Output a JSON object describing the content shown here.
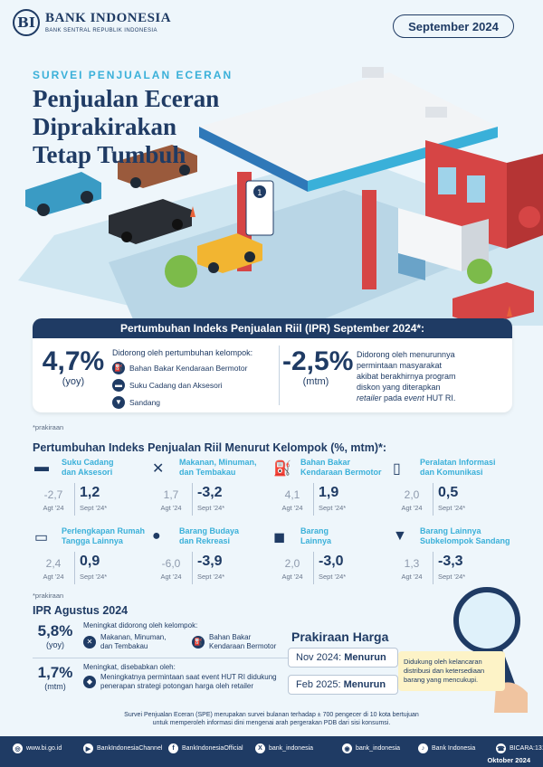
{
  "header": {
    "brand_name": "BANK INDONESIA",
    "brand_sub": "BANK SENTRAL REPUBLIK INDONESIA",
    "logo_letter": "BI",
    "period": "September 2024"
  },
  "intro": {
    "eyebrow": "SURVEI PENJUALAN ECERAN",
    "headline_line1": "Penjualan Eceran Diprakirakan",
    "headline_line2": "Tetap Tumbuh"
  },
  "ipr": {
    "title": "Pertumbuhan Indeks Penjualan Riil (IPR) September 2024*:",
    "yoy_value": "4,7%",
    "yoy_label": "(yoy)",
    "yoy_driver": "Didorong oleh pertumbuhan kelompok:",
    "yoy_items": [
      {
        "label": "Bahan Bakar Kendaraan Bermotor",
        "icon": "fuel-hose-icon"
      },
      {
        "label": "Suku Cadang dan Aksesori",
        "icon": "car-icon"
      },
      {
        "label": "Sandang",
        "icon": "shirt-icon"
      }
    ],
    "mtm_value": "-2,5%",
    "mtm_label": "(mtm)",
    "mtm_text_1": "Didorong oleh menurunnya",
    "mtm_text_2": "permintaan masyarakat",
    "mtm_text_3": "akibat berakhirnya program",
    "mtm_text_4": "diskon yang diterapkan",
    "mtm_text_5a": "retailer",
    "mtm_text_5b": " pada ",
    "mtm_text_5c": "event",
    "mtm_text_5d": " HUT RI.",
    "note": "*prakiraan"
  },
  "groups": {
    "title": "Pertumbuhan Indeks Penjualan Riil Menurut Kelompok (%, mtm)*:",
    "prev_label": "Agt '24",
    "cur_label": "Sept '24*",
    "items": [
      {
        "name1": "Suku Cadang",
        "name2": "dan Aksesori",
        "prev": "-2,7",
        "cur": "1,2",
        "icon": "car-icon"
      },
      {
        "name1": "Makanan, Minuman,",
        "name2": "dan Tembakau",
        "prev": "1,7",
        "cur": "-3,2",
        "icon": "utensils-icon"
      },
      {
        "name1": "Bahan Bakar",
        "name2": "Kendaraan Bermotor",
        "prev": "4,1",
        "cur": "1,9",
        "icon": "fuel-hose-icon"
      },
      {
        "name1": "Peralatan Informasi",
        "name2": "dan Komunikasi",
        "prev": "2,0",
        "cur": "0,5",
        "icon": "phone-icon"
      },
      {
        "name1": "Perlengkapan Rumah",
        "name2": "Tangga Lainnya",
        "prev": "2,4",
        "cur": "0,9",
        "icon": "sofa-icon"
      },
      {
        "name1": "Barang Budaya",
        "name2": "dan Rekreasi",
        "prev": "-6,0",
        "cur": "-3,9",
        "icon": "drop-icon"
      },
      {
        "name1": "Barang",
        "name2": "Lainnya",
        "prev": "2,0",
        "cur": "-3,0",
        "icon": "shopping-bag-icon"
      },
      {
        "name1": "Barang Lainnya",
        "name2": "Subkelompok Sandang",
        "prev": "1,3",
        "cur": "-3,3",
        "icon": "shirt-icon"
      }
    ],
    "note": "*prakiraan"
  },
  "august": {
    "title": "IPR Agustus 2024",
    "yoy_value": "5,8%",
    "yoy_label": "(yoy)",
    "yoy_driver": "Meningkat didorong oleh kelompok:",
    "yoy_item1_a": "Makanan, Minuman,",
    "yoy_item1_b": "dan Tembakau",
    "yoy_item2_a": "Bahan Bakar",
    "yoy_item2_b": "Kendaraan Bermotor",
    "mtm_value": "1,7%",
    "mtm_label": "(mtm)",
    "mtm_driver": "Meningkat, disebabkan oleh:",
    "mtm_reason_1": "Meningkatnya permintaan saat event HUT RI didukung",
    "mtm_reason_2": "penerapan strategi potongan harga oleh retailer"
  },
  "forecast": {
    "title": "Prakiraan Harga",
    "rows": [
      {
        "period": "Nov 2024:",
        "status": "Menurun"
      },
      {
        "period": "Feb 2025:",
        "status": "Menurun"
      }
    ],
    "note_1": "Didukung oleh kelancaran",
    "note_2": "distribusi dan ketersediaan",
    "note_3": "barang yang mencukupi."
  },
  "survey_note_1": "Survei Penjualan Eceran (SPE) merupakan survei bulanan terhadap ± 700 pengecer di 10 kota bertujuan",
  "survey_note_2": "untuk memperoleh informasi dini mengenai arah pergerakan PDB dari sisi konsumsi.",
  "footer": {
    "links": [
      {
        "label": "www.bi.go.id",
        "icon": "globe-icon",
        "glyph": "◎"
      },
      {
        "label": "BankIndonesiaChannel",
        "icon": "youtube-icon",
        "glyph": "▶"
      },
      {
        "label": "BankIndonesiaOfficial",
        "icon": "facebook-icon",
        "glyph": "f"
      },
      {
        "label": "bank_indonesia",
        "icon": "x-icon",
        "glyph": "X"
      },
      {
        "label": "bank_indonesia",
        "icon": "instagram-icon",
        "glyph": "◉"
      },
      {
        "label": "Bank Indonesia",
        "icon": "tiktok-icon",
        "glyph": "♪"
      },
      {
        "label": "BICARA:131",
        "icon": "phone-call-icon",
        "glyph": "☎"
      }
    ],
    "date": "Oktober 2024"
  }
}
